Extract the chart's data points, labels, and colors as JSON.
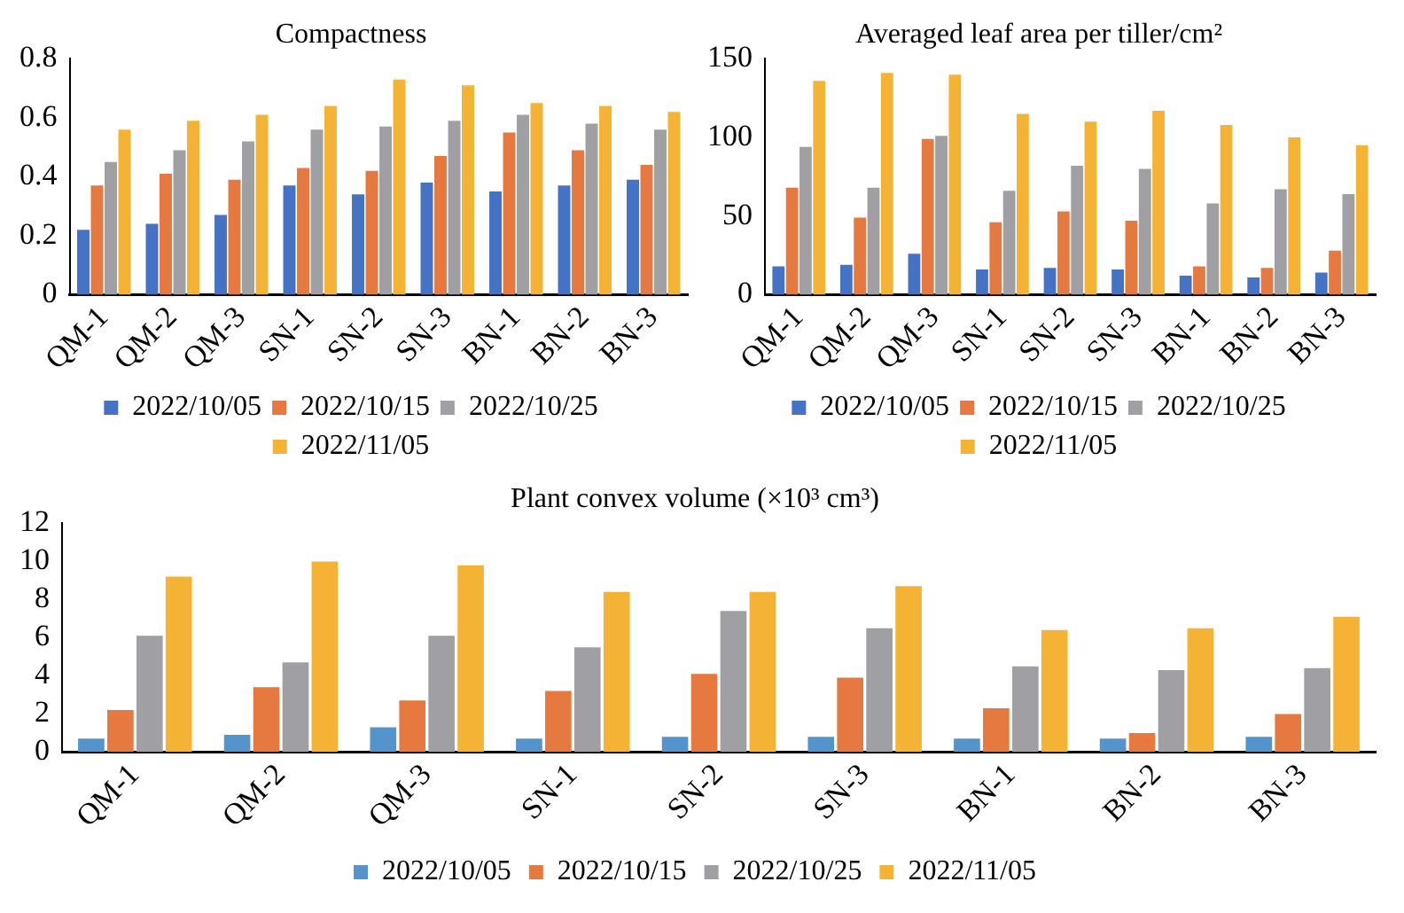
{
  "chart_data": [
    {
      "type": "bar",
      "title": "Compactness",
      "categories": [
        "QM-1",
        "QM-2",
        "QM-3",
        "SN-1",
        "SN-2",
        "SN-3",
        "BN-1",
        "BN-2",
        "BN-3"
      ],
      "series": [
        {
          "name": "2022/10/05",
          "color": "#4472c4",
          "values": [
            0.22,
            0.24,
            0.27,
            0.37,
            0.34,
            0.38,
            0.35,
            0.37,
            0.39
          ]
        },
        {
          "name": "2022/10/15",
          "color": "#e5793f",
          "values": [
            0.37,
            0.41,
            0.39,
            0.43,
            0.42,
            0.47,
            0.55,
            0.49,
            0.44
          ]
        },
        {
          "name": "2022/10/25",
          "color": "#a0a0a4",
          "values": [
            0.45,
            0.49,
            0.52,
            0.56,
            0.57,
            0.59,
            0.61,
            0.58,
            0.56
          ]
        },
        {
          "name": "2022/11/05",
          "color": "#f5b335",
          "values": [
            0.56,
            0.59,
            0.61,
            0.64,
            0.73,
            0.71,
            0.65,
            0.64,
            0.62
          ]
        }
      ],
      "ylim": [
        0,
        0.8
      ],
      "yticks": [
        0,
        0.2,
        0.4,
        0.6,
        0.8
      ],
      "grid": false,
      "legend": "bottom"
    },
    {
      "type": "bar",
      "title": "Averaged leaf area per tiller/cm²",
      "categories": [
        "QM-1",
        "QM-2",
        "QM-3",
        "SN-1",
        "SN-2",
        "SN-3",
        "BN-1",
        "BN-2",
        "BN-3"
      ],
      "series": [
        {
          "name": "2022/10/05",
          "color": "#4472c4",
          "values": [
            18,
            19,
            26,
            16,
            17,
            16,
            12,
            11,
            14
          ]
        },
        {
          "name": "2022/10/15",
          "color": "#e5793f",
          "values": [
            68,
            49,
            99,
            46,
            53,
            47,
            18,
            17,
            28
          ]
        },
        {
          "name": "2022/10/25",
          "color": "#a0a0a4",
          "values": [
            94,
            68,
            101,
            66,
            82,
            80,
            58,
            67,
            64
          ]
        },
        {
          "name": "2022/11/05",
          "color": "#f5b335",
          "values": [
            136,
            141,
            140,
            115,
            110,
            117,
            108,
            100,
            95
          ]
        }
      ],
      "ylim": [
        0,
        150
      ],
      "yticks": [
        0,
        50,
        100,
        150
      ],
      "grid": false,
      "legend": "bottom"
    },
    {
      "type": "bar",
      "title": "Plant convex volume (×10³ cm³)",
      "categories": [
        "QM-1",
        "QM-2",
        "QM-3",
        "SN-1",
        "SN-2",
        "SN-3",
        "BN-1",
        "BN-2",
        "BN-3"
      ],
      "series": [
        {
          "name": "2022/10/05",
          "color": "#5593cc",
          "values": [
            0.7,
            0.9,
            1.3,
            0.7,
            0.8,
            0.8,
            0.7,
            0.7,
            0.8
          ]
        },
        {
          "name": "2022/10/15",
          "color": "#e5793f",
          "values": [
            2.2,
            3.4,
            2.7,
            3.2,
            4.1,
            3.9,
            2.3,
            1.0,
            2.0
          ]
        },
        {
          "name": "2022/10/25",
          "color": "#a0a0a4",
          "values": [
            6.1,
            4.7,
            6.1,
            5.5,
            7.4,
            6.5,
            4.5,
            4.3,
            4.4
          ]
        },
        {
          "name": "2022/11/05",
          "color": "#f5b335",
          "values": [
            9.2,
            10.0,
            9.8,
            8.4,
            8.4,
            8.7,
            6.4,
            6.5,
            7.1
          ]
        }
      ],
      "ylim": [
        0,
        12
      ],
      "yticks": [
        0,
        2,
        4,
        6,
        8,
        10,
        12
      ],
      "grid": false,
      "legend": "bottom"
    }
  ]
}
